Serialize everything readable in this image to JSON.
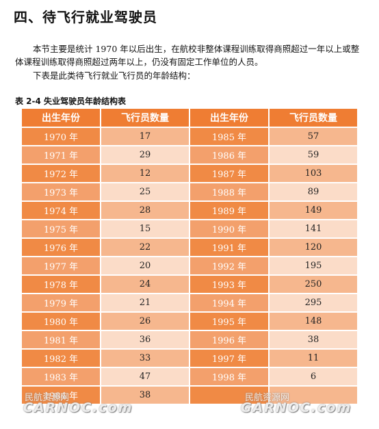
{
  "section_heading": "四、待飞行就业驾驶员",
  "paragraph1": "本节主要是统计 1970 年以后出生，在航校非整体课程训练取得商照超过一年以上或整体课程训练取得商照超过两年以上，仍没有固定工作单位的人员。",
  "paragraph2": "下表是此类待飞行就业飞行员的年龄结构：",
  "table_caption": "表 2-4  失业驾驶员年龄结构表",
  "table": {
    "headers": [
      "出生年份",
      "飞行员数量",
      "出生年份",
      "飞行员数量"
    ],
    "rows": [
      [
        "1970 年",
        "17",
        "1985 年",
        "57"
      ],
      [
        "1971 年",
        "29",
        "1986 年",
        "59"
      ],
      [
        "1972 年",
        "12",
        "1987 年",
        "103"
      ],
      [
        "1973 年",
        "25",
        "1988 年",
        "89"
      ],
      [
        "1974 年",
        "28",
        "1989 年",
        "149"
      ],
      [
        "1975 年",
        "15",
        "1990 年",
        "141"
      ],
      [
        "1976 年",
        "22",
        "1991 年",
        "120"
      ],
      [
        "1977 年",
        "20",
        "1992 年",
        "195"
      ],
      [
        "1978 年",
        "24",
        "1993 年",
        "250"
      ],
      [
        "1979 年",
        "21",
        "1994 年",
        "295"
      ],
      [
        "1980 年",
        "26",
        "1995 年",
        "148"
      ],
      [
        "1981 年",
        "36",
        "1996 年",
        "38"
      ],
      [
        "1982 年",
        "33",
        "1997 年",
        "11"
      ],
      [
        "1983 年",
        "47",
        "1998 年",
        "6"
      ],
      [
        "1984 年",
        "38",
        "",
        ""
      ]
    ]
  },
  "watermarks": {
    "left_cn": "民航资源网",
    "left_en": "CARNOC.com",
    "right_cn": "民航资源网",
    "right_en": "GARNOC.com"
  },
  "colors": {
    "header_bg": "#ef7d33",
    "year_cell_dark": "#f08a45",
    "year_cell_light": "#f3a06c",
    "count_cell_dark": "#f6b78e",
    "count_cell_light": "#fbdcc8"
  }
}
